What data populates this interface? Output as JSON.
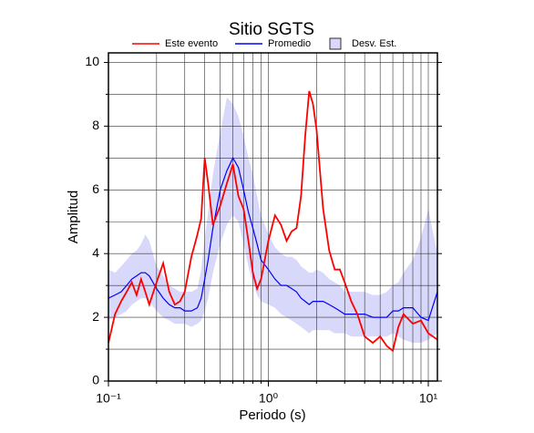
{
  "chart_data": {
    "type": "line",
    "title": "Sitio SGTS",
    "x_label": "Periodo (s)",
    "y_label": "Amplitud",
    "x_scale": "log",
    "xlim": [
      0.1,
      11.4
    ],
    "ylim": [
      0,
      10.3
    ],
    "xticks": [
      {
        "value": 0.1,
        "label": "10⁻¹"
      },
      {
        "value": 1,
        "label": "10⁰"
      },
      {
        "value": 10,
        "label": "10¹"
      }
    ],
    "xminor_ticks": [
      0.2,
      0.3,
      0.4,
      0.5,
      0.6,
      0.7,
      0.8,
      0.9,
      2,
      3,
      4,
      5,
      6,
      7,
      8,
      9
    ],
    "yticks": [
      0,
      2,
      4,
      6,
      8,
      10
    ],
    "yminor_ticks": [
      1,
      3,
      5,
      7,
      9
    ],
    "grid": true,
    "legend": "top",
    "x": [
      0.1,
      0.11,
      0.12,
      0.13,
      0.14,
      0.15,
      0.16,
      0.17,
      0.18,
      0.2,
      0.22,
      0.24,
      0.26,
      0.28,
      0.3,
      0.33,
      0.36,
      0.38,
      0.4,
      0.42,
      0.45,
      0.5,
      0.55,
      0.6,
      0.65,
      0.7,
      0.75,
      0.8,
      0.85,
      0.9,
      1.0,
      1.1,
      1.2,
      1.3,
      1.4,
      1.5,
      1.6,
      1.7,
      1.8,
      1.9,
      2.0,
      2.2,
      2.4,
      2.6,
      2.8,
      3.0,
      3.3,
      3.6,
      4.0,
      4.5,
      5.0,
      5.5,
      6.0,
      6.5,
      7.0,
      8.0,
      9.0,
      10,
      11.4
    ],
    "series": [
      {
        "name": "Este evento",
        "color": "#ff0000",
        "values": [
          1.2,
          2.1,
          2.5,
          2.8,
          3.1,
          2.7,
          3.2,
          2.8,
          2.4,
          3.1,
          3.7,
          2.8,
          2.4,
          2.5,
          2.8,
          3.9,
          4.6,
          5.1,
          7.0,
          6.2,
          4.9,
          5.5,
          6.2,
          6.8,
          5.8,
          5.4,
          4.4,
          3.4,
          2.9,
          3.2,
          4.4,
          5.2,
          4.9,
          4.4,
          4.7,
          4.8,
          5.8,
          7.7,
          9.1,
          8.7,
          7.9,
          5.4,
          4.1,
          3.5,
          3.5,
          3.1,
          2.5,
          2.1,
          1.4,
          1.2,
          1.4,
          1.1,
          0.95,
          1.7,
          2.1,
          1.8,
          1.9,
          1.5,
          1.3
        ]
      },
      {
        "name": "Promedio",
        "color": "#0000ff",
        "values": [
          2.6,
          2.7,
          2.8,
          3.0,
          3.2,
          3.3,
          3.4,
          3.4,
          3.3,
          2.9,
          2.6,
          2.4,
          2.3,
          2.3,
          2.2,
          2.2,
          2.3,
          2.6,
          3.2,
          3.8,
          4.8,
          6.0,
          6.6,
          7.0,
          6.7,
          6.0,
          5.3,
          4.8,
          4.3,
          3.8,
          3.5,
          3.2,
          3.0,
          3.0,
          2.9,
          2.8,
          2.6,
          2.5,
          2.4,
          2.5,
          2.5,
          2.5,
          2.4,
          2.3,
          2.2,
          2.1,
          2.1,
          2.1,
          2.1,
          2.0,
          2.0,
          2.0,
          2.2,
          2.2,
          2.3,
          2.3,
          2.0,
          1.9,
          2.8
        ]
      },
      {
        "name": "Desv. Est.",
        "color": "#d8d8fa",
        "lower": [
          1.9,
          2.0,
          2.1,
          2.2,
          2.4,
          2.5,
          2.6,
          2.6,
          2.5,
          2.2,
          2.0,
          1.9,
          1.8,
          1.8,
          1.8,
          1.7,
          1.8,
          1.9,
          2.2,
          2.6,
          3.4,
          4.3,
          4.9,
          5.2,
          5.0,
          4.3,
          3.6,
          3.1,
          2.7,
          2.5,
          2.4,
          2.3,
          2.1,
          2.0,
          1.9,
          1.8,
          1.7,
          1.6,
          1.5,
          1.6,
          1.6,
          1.6,
          1.6,
          1.5,
          1.5,
          1.5,
          1.4,
          1.4,
          1.4,
          1.4,
          1.4,
          1.4,
          1.5,
          1.4,
          1.3,
          1.2,
          1.2,
          1.3,
          1.5
        ],
        "upper": [
          3.5,
          3.4,
          3.6,
          3.8,
          4.0,
          4.1,
          4.3,
          4.6,
          4.4,
          3.6,
          3.3,
          3.0,
          2.9,
          2.8,
          2.8,
          2.8,
          2.9,
          3.5,
          4.5,
          5.3,
          6.5,
          7.8,
          8.9,
          8.7,
          8.3,
          7.7,
          7.0,
          6.5,
          5.8,
          5.2,
          4.6,
          4.2,
          4.0,
          3.9,
          3.9,
          3.8,
          3.6,
          3.5,
          3.4,
          3.4,
          3.5,
          3.4,
          3.2,
          3.1,
          3.0,
          2.8,
          2.8,
          2.8,
          2.8,
          2.7,
          2.7,
          2.8,
          3.0,
          3.1,
          3.4,
          3.8,
          4.5,
          5.4,
          4.0
        ]
      }
    ]
  }
}
